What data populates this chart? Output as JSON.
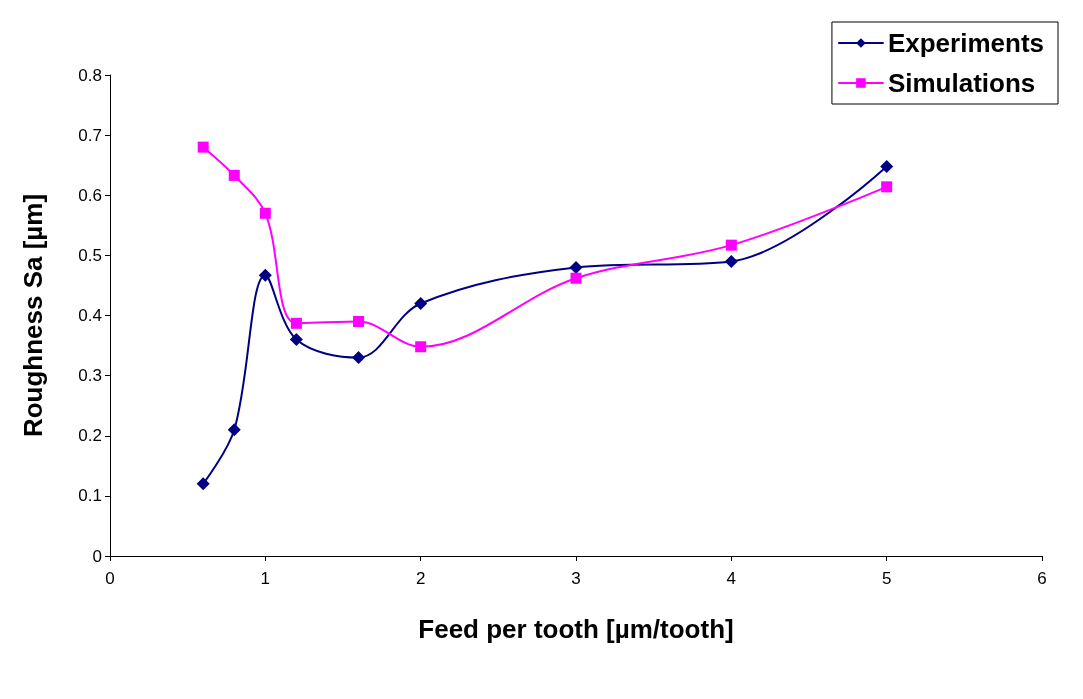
{
  "chart_data": {
    "type": "line",
    "xlabel": "Feed per tooth [µm/tooth]",
    "ylabel": "Roughness Sa [µm]",
    "xlim": [
      0,
      6
    ],
    "xticks": [
      0,
      1,
      2,
      3,
      4,
      5,
      6
    ],
    "ylim": [
      0,
      0.8
    ],
    "yticks": [
      0,
      0.1,
      0.2,
      0.3,
      0.4,
      0.5,
      0.6,
      0.7,
      0.8
    ],
    "grid": false,
    "legend": "top right",
    "line_style": "solid",
    "x": [
      0.6,
      0.8,
      1,
      1.2,
      1.6,
      2,
      3,
      4,
      5
    ],
    "series": [
      {
        "name": "Experiments",
        "color": "#000080",
        "marker": "diamond",
        "values": [
          0.12,
          0.21,
          0.467,
          0.36,
          0.33,
          0.42,
          0.48,
          0.49,
          0.648
        ]
      },
      {
        "name": "Simulations",
        "color": "#ff00ff",
        "marker": "square",
        "values": [
          0.68,
          0.633,
          0.57,
          0.387,
          0.39,
          0.348,
          0.462,
          0.517,
          0.614
        ]
      }
    ]
  }
}
